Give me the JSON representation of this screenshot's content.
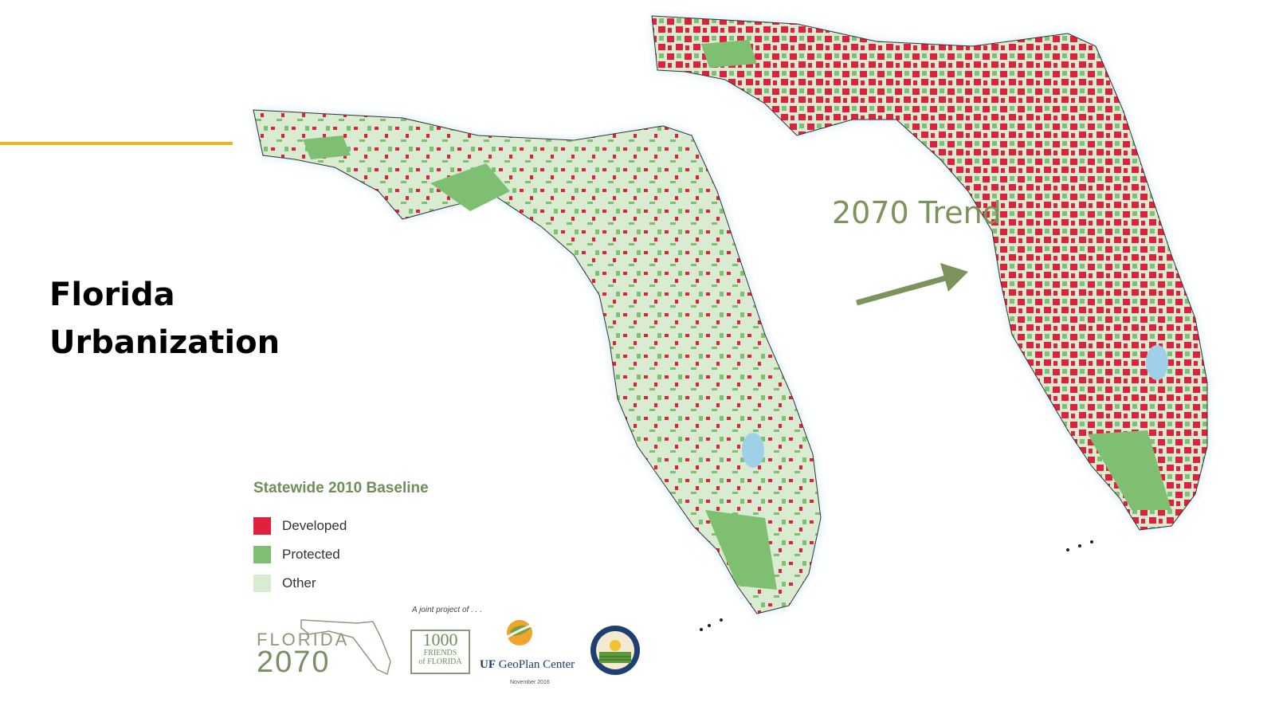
{
  "slide": {
    "title_line1": "Florida",
    "title_line2": "Urbanization",
    "accent_color": "#f1b51c"
  },
  "maps": {
    "trend_label": "2070 Trend",
    "arrow_color": "#7d935c"
  },
  "legend": {
    "title": "Statewide 2010 Baseline",
    "items": [
      {
        "label": "Developed",
        "color": "#e0203c"
      },
      {
        "label": "Protected",
        "color": "#7fbf72"
      },
      {
        "label": "Other",
        "color": "#d9ecd2"
      }
    ]
  },
  "credits": {
    "joint_project": "A joint project of . . .",
    "florida_logo_line1": "FLORIDA",
    "florida_logo_line2": "2070",
    "friends_logo_line1": "1000",
    "friends_logo_line2": "FRIENDS",
    "friends_logo_line3": "of FLORIDA",
    "uf_mark": "UF",
    "geoplan": "GeoPlan Center",
    "date": "November 2016"
  }
}
